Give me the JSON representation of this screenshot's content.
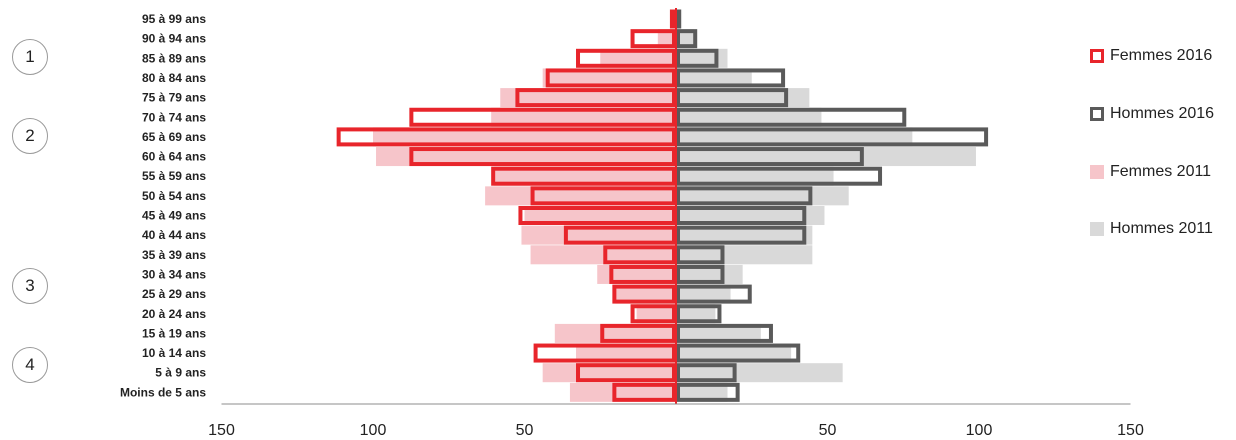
{
  "chart_data": {
    "type": "bar",
    "orientation": "horizontal-population-pyramid",
    "categories": [
      "Moins de 5 ans",
      "5 à 9 ans",
      "10 à 14 ans",
      "15 à 19 ans",
      "20 à 24 ans",
      "25 à 29 ans",
      "30 à 34 ans",
      "35 à 39 ans",
      "40 à 44 ans",
      "45 à 49 ans",
      "50 à 54 ans",
      "55 à 59 ans",
      "60 à 64 ans",
      "65 à 69 ans",
      "70 à 74 ans",
      "75 à 79 ans",
      "80 à 84 ans",
      "85 à 89 ans",
      "90 à 94 ans",
      "95 à 99 ans"
    ],
    "series": [
      {
        "name": "Femmes 2016",
        "side": "left",
        "color": "#e8252b",
        "values": [
          21,
          33,
          47,
          25,
          15,
          21,
          22,
          24,
          37,
          52,
          48,
          61,
          88,
          112,
          88,
          53,
          43,
          33,
          15,
          2
        ]
      },
      {
        "name": "Hommes 2016",
        "side": "right",
        "color": "#5a5a5a",
        "values": [
          21,
          20,
          41,
          32,
          15,
          25,
          16,
          16,
          43,
          43,
          45,
          68,
          62,
          103,
          76,
          37,
          36,
          14,
          7,
          1
        ]
      },
      {
        "name": "Femmes 2011",
        "side": "left",
        "color": "#f6c5ca",
        "values": [
          35,
          44,
          33,
          40,
          13,
          20,
          26,
          48,
          51,
          50,
          63,
          60,
          99,
          100,
          61,
          58,
          44,
          25,
          6,
          2
        ]
      },
      {
        "name": "Hommes 2011",
        "side": "right",
        "color": "#d9d9d9",
        "values": [
          17,
          55,
          38,
          28,
          13,
          18,
          22,
          45,
          45,
          49,
          57,
          52,
          99,
          78,
          48,
          44,
          25,
          17,
          6,
          2
        ]
      }
    ],
    "xlim": [
      -150,
      150
    ],
    "xtick_labels": [
      "150",
      "100",
      "50",
      "50",
      "100",
      "150"
    ],
    "xtick_values": [
      -150,
      -100,
      -50,
      50,
      100,
      150
    ],
    "legend": "right",
    "grid": false
  },
  "markers": [
    "1",
    "2",
    "3",
    "4"
  ],
  "colors": {
    "red": "#e8252b",
    "dark": "#5a5a5a",
    "pink": "#f6c5ca",
    "grey": "#d9d9d9",
    "axis": "#8c8c8c"
  }
}
